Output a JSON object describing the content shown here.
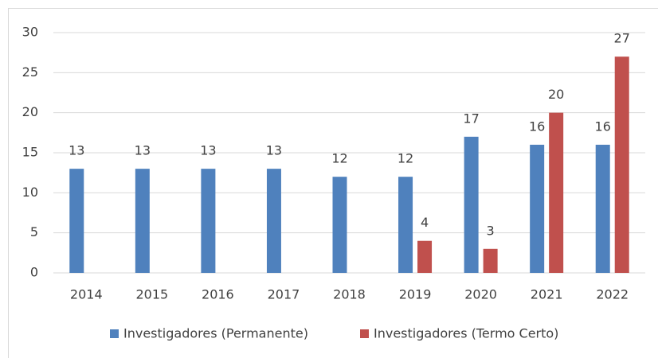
{
  "chart_data": {
    "type": "bar",
    "categories": [
      "2014",
      "2015",
      "2016",
      "2017",
      "2018",
      "2019",
      "2020",
      "2021",
      "2022"
    ],
    "series": [
      {
        "name": "Investigadores (Permanente)",
        "color": "#4f81bd",
        "values": [
          13,
          13,
          13,
          13,
          12,
          12,
          17,
          16,
          16
        ]
      },
      {
        "name": "Investigadores (Termo Certo)",
        "color": "#c0504d",
        "values": [
          null,
          null,
          null,
          null,
          null,
          4,
          3,
          20,
          27
        ]
      }
    ],
    "ylim": [
      0,
      30
    ],
    "yticks": [
      0,
      5,
      10,
      15,
      20,
      25,
      30
    ],
    "grid": true,
    "legend": "bottom"
  }
}
